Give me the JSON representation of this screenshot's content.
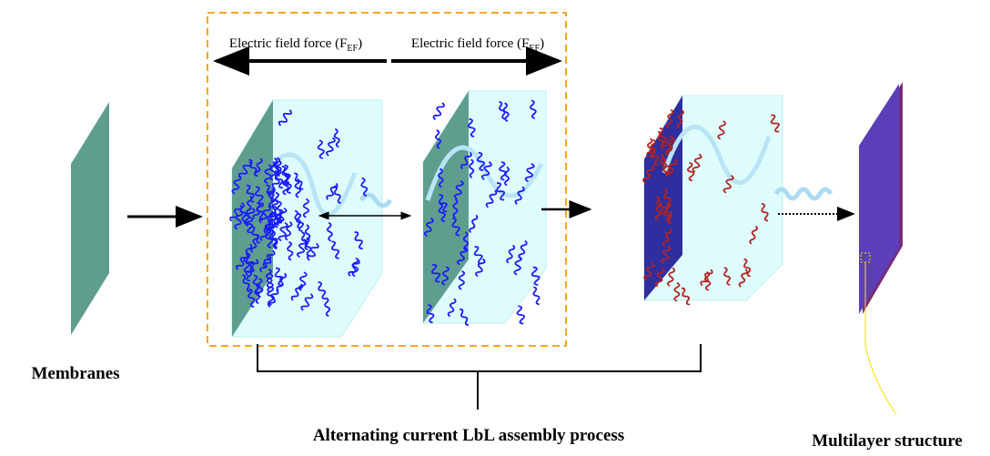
{
  "labels": {
    "force_left": {
      "text": "Electric field force (F",
      "sub": "EF",
      "close": ")"
    },
    "force_right": {
      "text": "Electric field force (F",
      "sub": "EF",
      "close": ")"
    },
    "membranes": "Membranes",
    "process": "Alternating current LbL assembly process",
    "multilayer": "Multilayer structure"
  }
}
